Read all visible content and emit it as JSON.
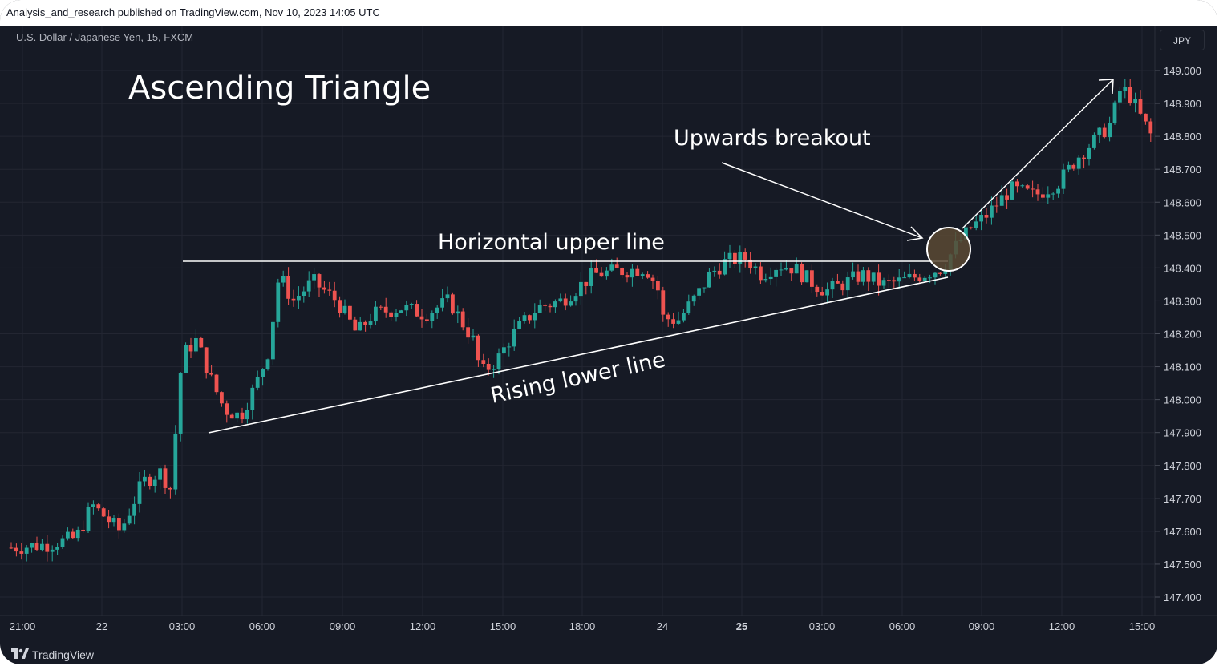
{
  "header": {
    "published": "Analysis_and_research published on TradingView.com, Nov 10, 2023 14:05 UTC",
    "symbol": "U.S. Dollar / Japanese Yen, 15, FXCM",
    "currency_button": "JPY"
  },
  "footer": {
    "brand": "TradingView"
  },
  "colors": {
    "background": "#161a25",
    "up": "#26a69a",
    "down": "#ef5350",
    "text": "#d1d4dc",
    "annotation": "#ffffff",
    "breakout_fill": "#5a4a34"
  },
  "chart_data": {
    "type": "candlestick",
    "title": "Ascending Triangle",
    "symbol": "USDJPY",
    "timeframe": "15",
    "ylim": [
      147.35,
      149.05
    ],
    "y_ticks": [
      "149.000",
      "148.900",
      "148.800",
      "148.700",
      "148.600",
      "148.500",
      "148.400",
      "148.300",
      "148.200",
      "148.100",
      "148.000",
      "147.900",
      "147.800",
      "147.700",
      "147.600",
      "147.500",
      "147.400"
    ],
    "x_ticks": [
      "21:00",
      "22",
      "03:00",
      "06:00",
      "09:00",
      "12:00",
      "15:00",
      "18:00",
      "24",
      "25",
      "03:00",
      "06:00",
      "09:00",
      "12:00",
      "15:00"
    ],
    "grid": true,
    "annotations": [
      {
        "type": "label",
        "text": "Ascending Triangle",
        "role": "title"
      },
      {
        "type": "label",
        "text": "Horizontal upper line"
      },
      {
        "type": "label",
        "text": "Rising lower line"
      },
      {
        "type": "label",
        "text": "Upwards breakout"
      },
      {
        "type": "hline",
        "name": "Horizontal upper line",
        "y": 148.42,
        "x_from": "Nov 22 03:00",
        "x_to": "Nov 25 07:45"
      },
      {
        "type": "trendline",
        "name": "Rising lower line",
        "from": {
          "x": "Nov 22 04:00",
          "y": 147.9
        },
        "to": {
          "x": "Nov 25 07:45",
          "y": 148.37
        }
      },
      {
        "type": "circle",
        "name": "Breakout",
        "x": "Nov 25 07:45",
        "y": 148.45
      },
      {
        "type": "arrow",
        "name": "Upwards breakout pointer",
        "to": {
          "x": "Nov 25 07:15",
          "y": 148.5
        }
      },
      {
        "type": "arrow",
        "name": "Breakout target",
        "to": {
          "x": "Nov 25 14:45",
          "y": 148.98
        }
      }
    ],
    "candles_approx": [
      {
        "time": "Nov 21 21:00",
        "open": 147.55,
        "high": 147.58,
        "low": 147.5,
        "close": 147.56
      },
      {
        "time": "Nov 22 00:00",
        "open": 147.57,
        "high": 147.72,
        "low": 147.5,
        "close": 147.6
      },
      {
        "time": "Nov 22 02:30",
        "open": 147.65,
        "high": 147.82,
        "low": 147.65,
        "close": 147.79
      },
      {
        "time": "Nov 22 03:00",
        "open": 147.8,
        "high": 148.18,
        "low": 147.7,
        "close": 148.05
      },
      {
        "time": "Nov 22 03:30",
        "open": 148.05,
        "high": 148.24,
        "low": 148.0,
        "close": 148.15
      },
      {
        "time": "Nov 22 04:30",
        "open": 148.15,
        "high": 148.26,
        "low": 148.0,
        "close": 148.02
      },
      {
        "time": "Nov 22 05:00",
        "open": 148.02,
        "high": 148.05,
        "low": 147.91,
        "close": 147.95
      },
      {
        "time": "Nov 22 06:00",
        "open": 147.95,
        "high": 148.17,
        "low": 147.93,
        "close": 148.15
      },
      {
        "time": "Nov 22 06:45",
        "open": 148.15,
        "high": 148.42,
        "low": 148.1,
        "close": 148.4
      },
      {
        "time": "Nov 22 09:00",
        "open": 148.3,
        "high": 148.4,
        "low": 148.2,
        "close": 148.27
      },
      {
        "time": "Nov 22 12:00",
        "open": 148.26,
        "high": 148.32,
        "low": 148.2,
        "close": 148.28
      },
      {
        "time": "Nov 22 14:30",
        "open": 148.2,
        "high": 148.22,
        "low": 148.05,
        "close": 148.08
      },
      {
        "time": "Nov 22 15:00",
        "open": 148.08,
        "high": 148.2,
        "low": 148.05,
        "close": 148.18
      },
      {
        "time": "Nov 22 18:00",
        "open": 148.28,
        "high": 148.38,
        "low": 148.25,
        "close": 148.35
      },
      {
        "time": "Nov 22 21:00",
        "open": 148.38,
        "high": 148.41,
        "low": 148.34,
        "close": 148.39
      },
      {
        "time": "Nov 24 00:00",
        "open": 148.22,
        "high": 148.3,
        "low": 148.2,
        "close": 148.25
      },
      {
        "time": "Nov 24 02:00",
        "open": 148.28,
        "high": 148.48,
        "low": 148.25,
        "close": 148.44
      },
      {
        "time": "Nov 25 03:00",
        "open": 148.35,
        "high": 148.38,
        "low": 148.32,
        "close": 148.34
      },
      {
        "time": "Nov 25 06:00",
        "open": 148.34,
        "high": 148.38,
        "low": 148.32,
        "close": 148.36
      },
      {
        "time": "Nov 25 08:00",
        "open": 148.4,
        "high": 148.52,
        "low": 148.38,
        "close": 148.5
      },
      {
        "time": "Nov 25 09:00",
        "open": 148.5,
        "high": 148.57,
        "low": 148.48,
        "close": 148.55
      },
      {
        "time": "Nov 25 12:00",
        "open": 148.63,
        "high": 148.7,
        "low": 148.6,
        "close": 148.68
      },
      {
        "time": "Nov 25 14:00",
        "open": 148.78,
        "high": 148.97,
        "low": 148.75,
        "close": 148.93
      },
      {
        "time": "Nov 25 15:00",
        "open": 148.88,
        "high": 148.92,
        "low": 148.78,
        "close": 148.8
      }
    ]
  }
}
